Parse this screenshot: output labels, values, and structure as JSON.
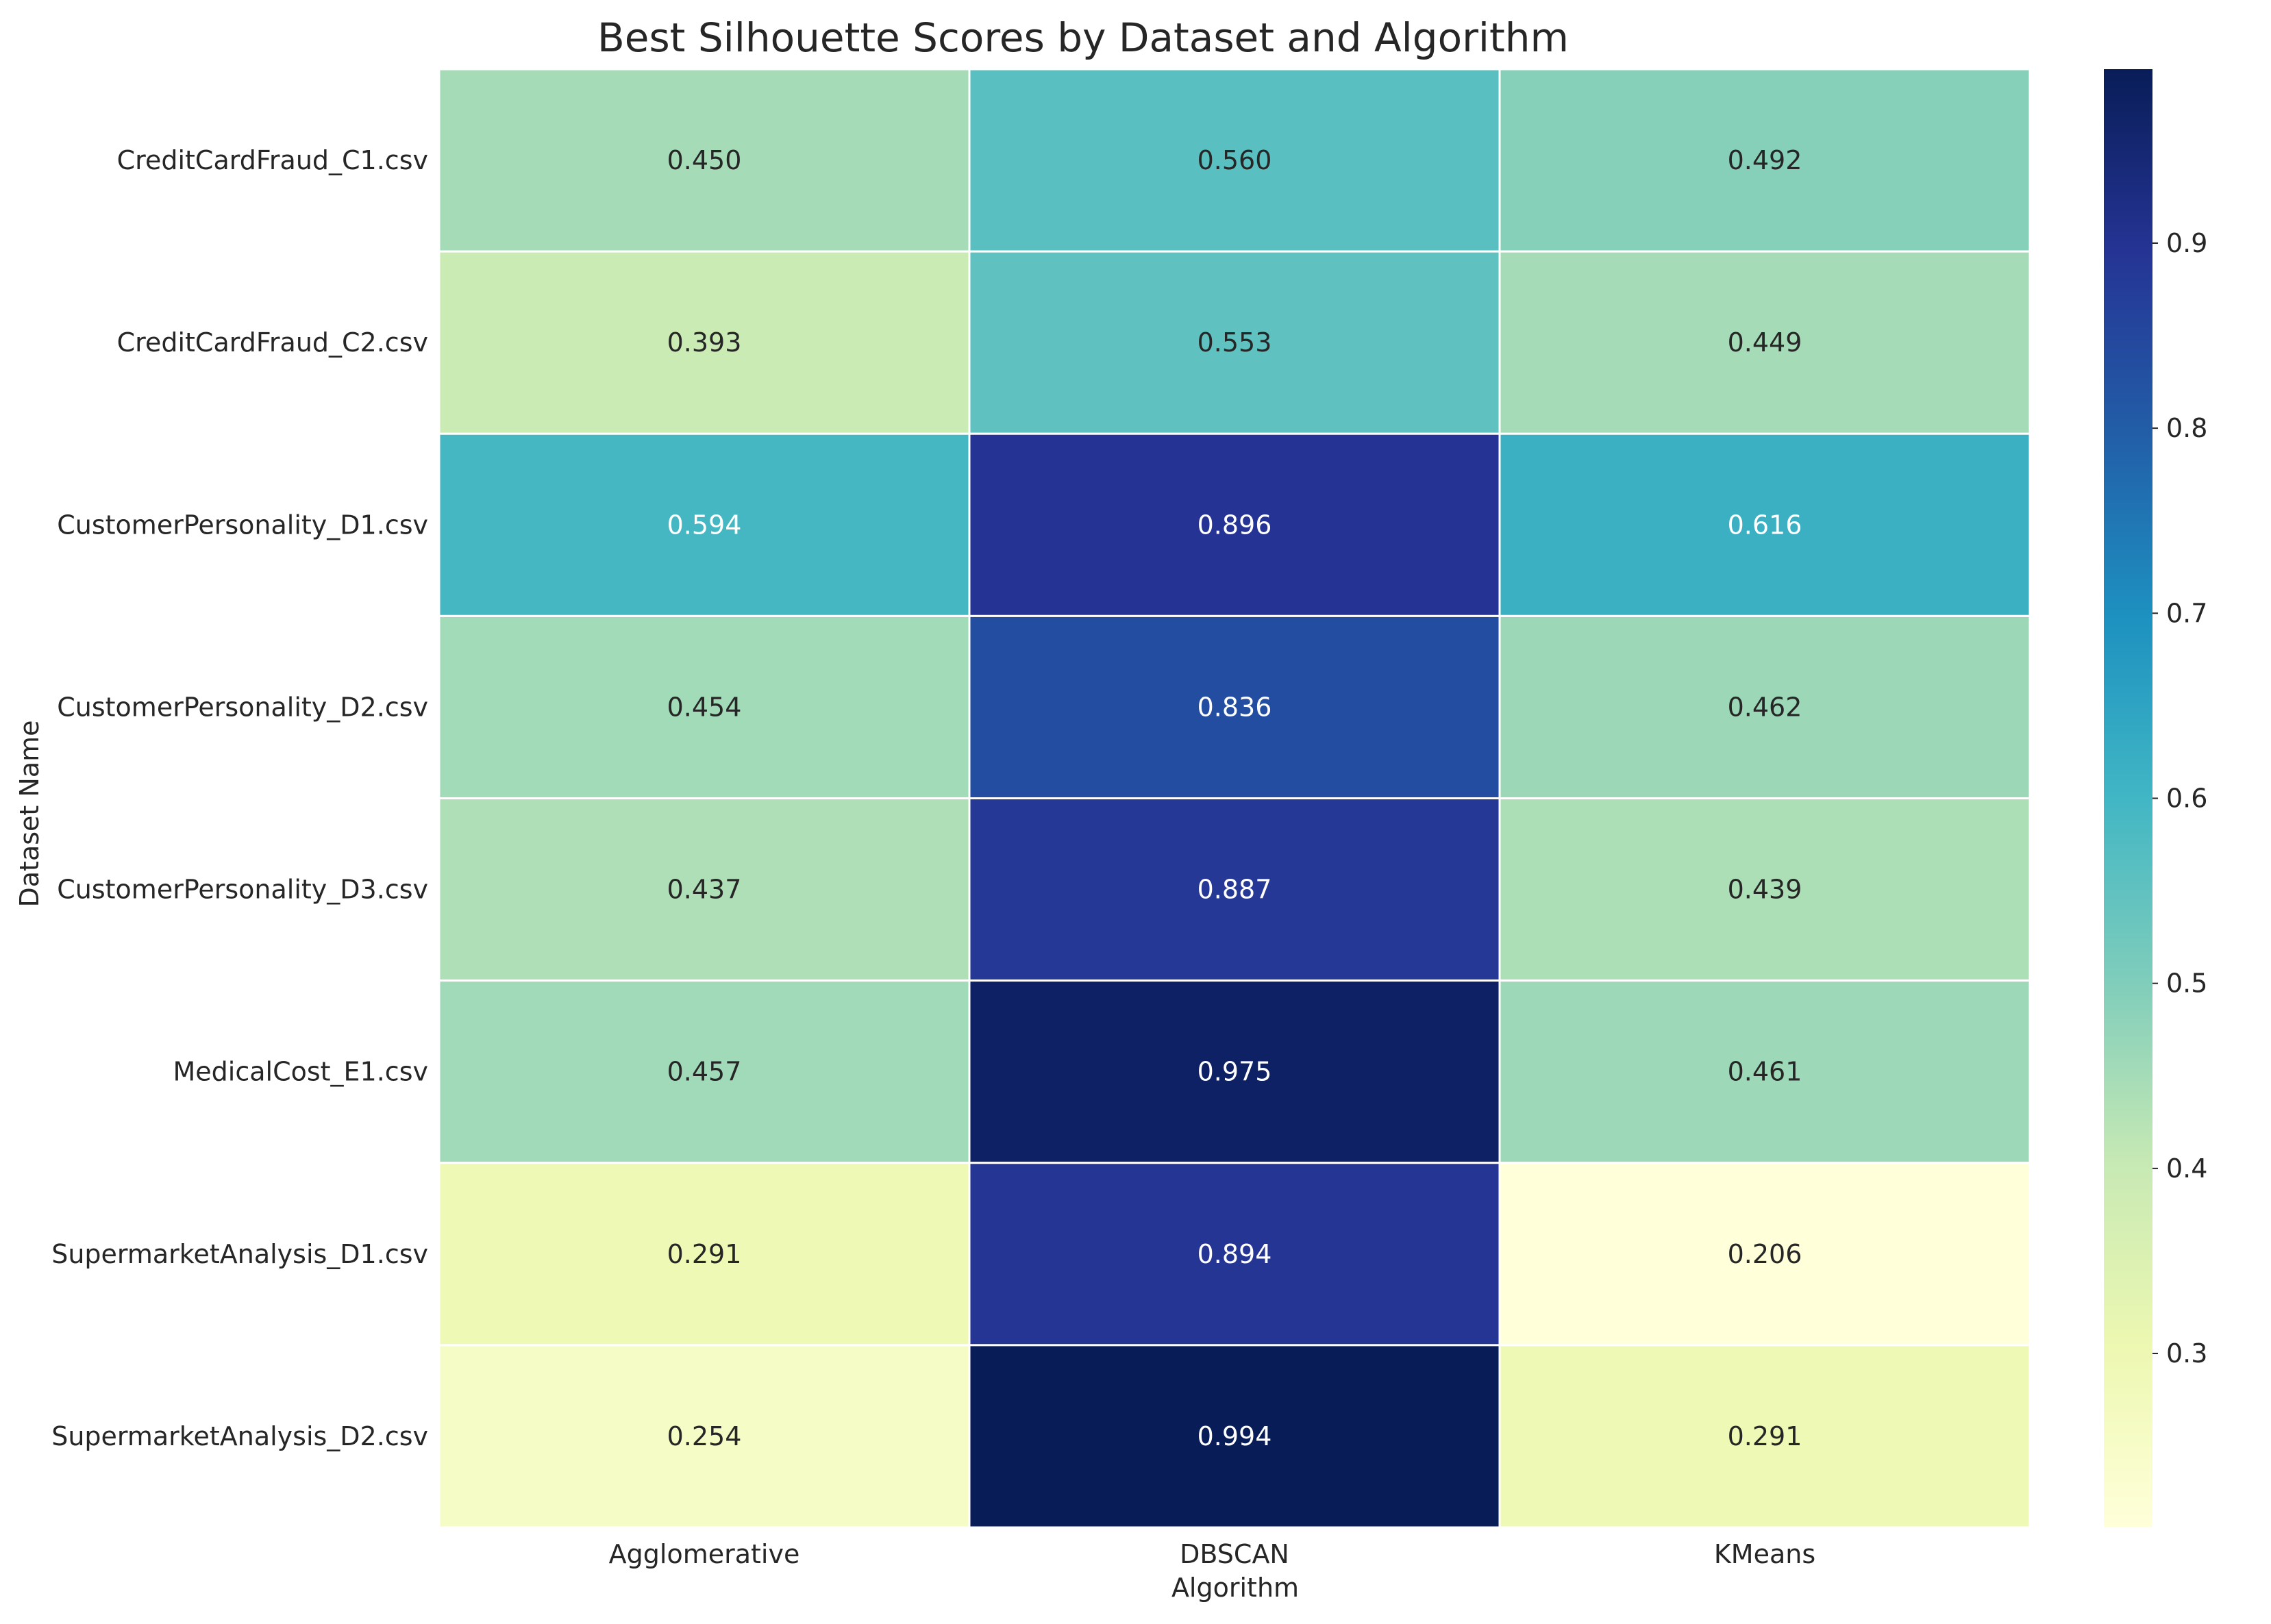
{
  "chart_data": {
    "type": "heatmap",
    "title": "Best Silhouette Scores by Dataset and Algorithm",
    "xlabel": "Algorithm",
    "ylabel": "Dataset Name",
    "columns": [
      "Agglomerative",
      "DBSCAN",
      "KMeans"
    ],
    "rows": [
      "CreditCardFraud_C1.csv",
      "CreditCardFraud_C2.csv",
      "CustomerPersonality_D1.csv",
      "CustomerPersonality_D2.csv",
      "CustomerPersonality_D3.csv",
      "MedicalCost_E1.csv",
      "SupermarketAnalysis_D1.csv",
      "SupermarketAnalysis_D2.csv"
    ],
    "values": [
      [
        0.45,
        0.56,
        0.492
      ],
      [
        0.393,
        0.553,
        0.449
      ],
      [
        0.594,
        0.896,
        0.616
      ],
      [
        0.454,
        0.836,
        0.462
      ],
      [
        0.437,
        0.887,
        0.439
      ],
      [
        0.457,
        0.975,
        0.461
      ],
      [
        0.291,
        0.894,
        0.206
      ],
      [
        0.254,
        0.994,
        0.291
      ]
    ],
    "value_format": "0.000",
    "colormap": "YlGnBu",
    "colorbar": {
      "range": [
        0.206,
        0.994
      ],
      "ticks": [
        0.3,
        0.4,
        0.5,
        0.6,
        0.7,
        0.8,
        0.9
      ],
      "tick_labels": [
        "0.3",
        "0.4",
        "0.5",
        "0.6",
        "0.7",
        "0.8",
        "0.9"
      ]
    },
    "grid": false,
    "cell_separator_color": "#ffffff"
  }
}
